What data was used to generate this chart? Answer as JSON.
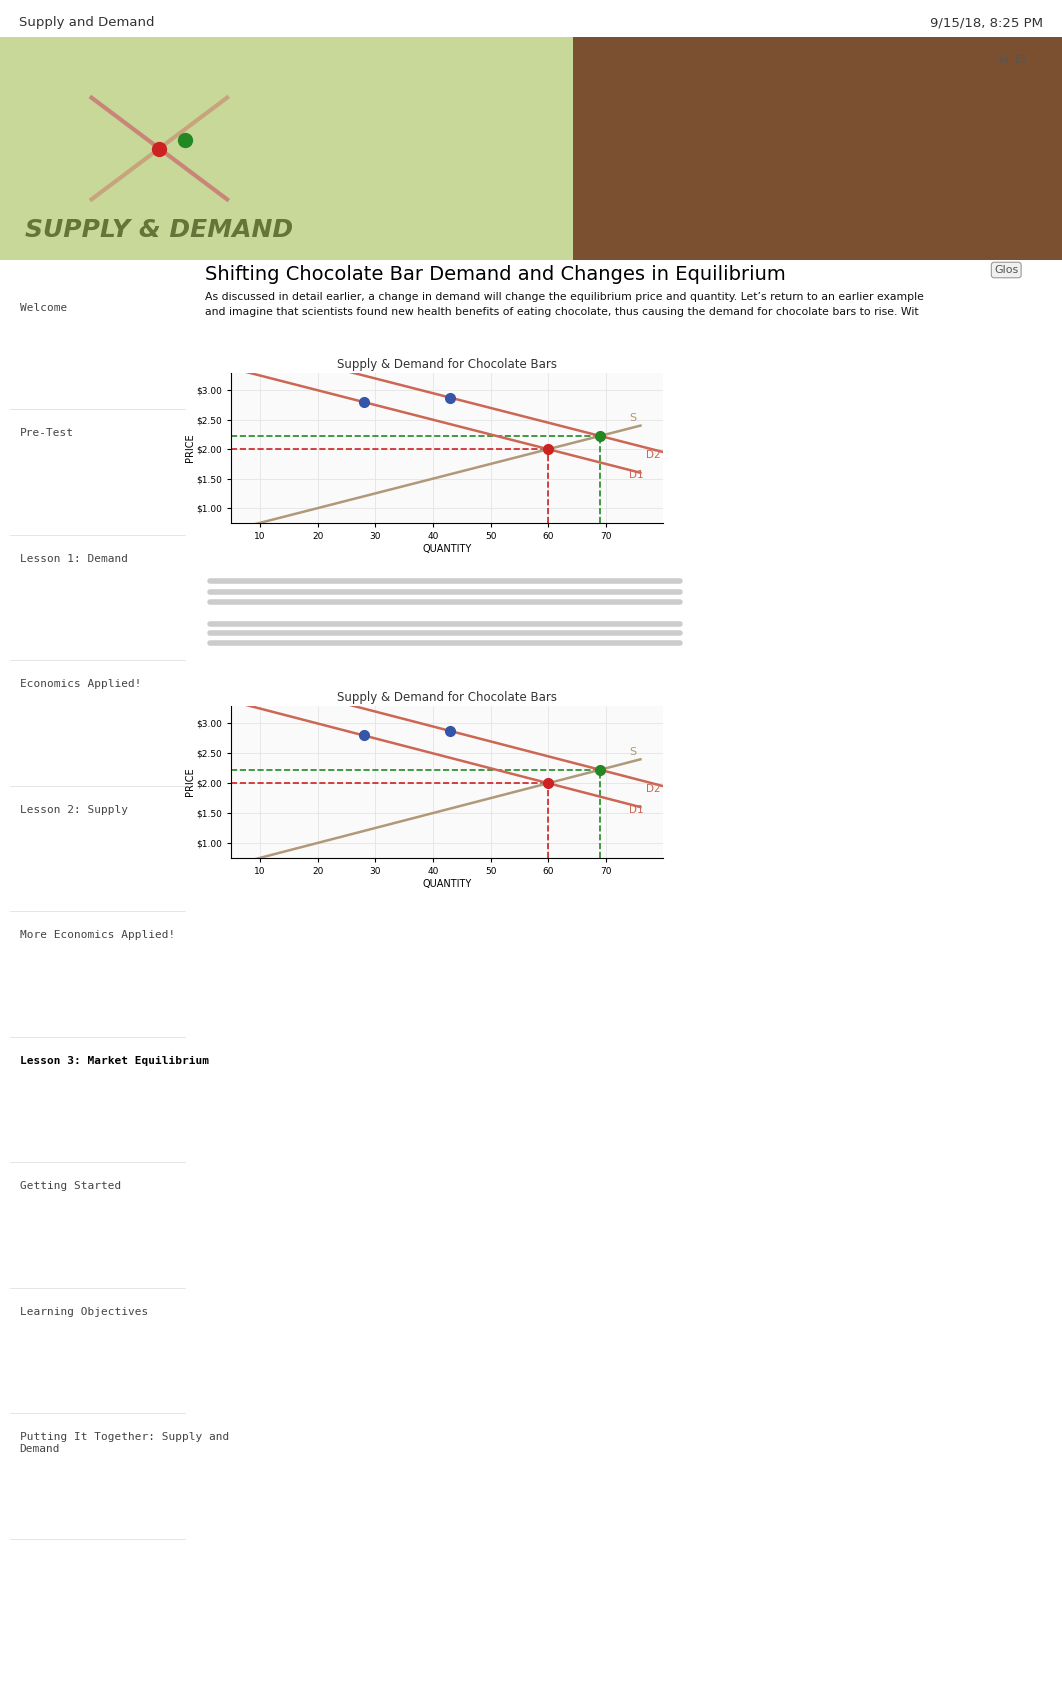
{
  "page_title_left": "Supply and Demand",
  "page_title_right": "9/15/18, 8:25 PM",
  "main_title": "Shifting Chocolate Bar Demand and Changes in Equilibrium",
  "glos_label": "Glos",
  "body_text_line1": "As discussed in detail earlier, a change in demand will change the equilibrium price and quantity. Let’s return to an earlier example",
  "body_text_line2": "and imagine that scientists found new health benefits of eating chocolate, thus causing the demand for chocolate bars to rise. Wit",
  "chart_title": "Supply & Demand for Chocolate Bars",
  "sidebar_items": [
    "Welcome",
    "Pre-Test",
    "Lesson 1: Demand",
    "Economics Applied!",
    "Lesson 2: Supply",
    "More Economics Applied!",
    "Lesson 3: Market Equilibrium",
    "Getting Started",
    "Learning Objectives",
    "Putting It Together: Supply and\nDemand"
  ],
  "sidebar_bold": "Lesson 3: Market Equilibrium",
  "price_labels": [
    "$1.00",
    "$1.50",
    "$2.00",
    "$2.50",
    "$3.00"
  ],
  "qty_labels": [
    "10",
    "20",
    "30",
    "40",
    "50",
    "60",
    "70"
  ],
  "bg_color": "#ffffff",
  "sidebar_divider_color": "#e0e0e0",
  "banner_left_color": "#d4e0a0",
  "banner_right_color": "#8B4513",
  "chart_frame_color": "#c8c8c8",
  "chart_bg_color": "#f5f5f5",
  "supply_color": "#b09878",
  "demand_color": "#cc6655",
  "eq_red_color": "#cc2222",
  "eq_green_color": "#228822",
  "dot_blue_color": "#3355aa",
  "dashed_red": "#cc2222",
  "dashed_green": "#228822",
  "blurred_box_color": "#e4e4e4",
  "header_text_color": "#333333",
  "sidebar_normal_color": "#444444",
  "sidebar_bold_color": "#000000",
  "content_text_color": "#111111",
  "icons_color": "#555555"
}
